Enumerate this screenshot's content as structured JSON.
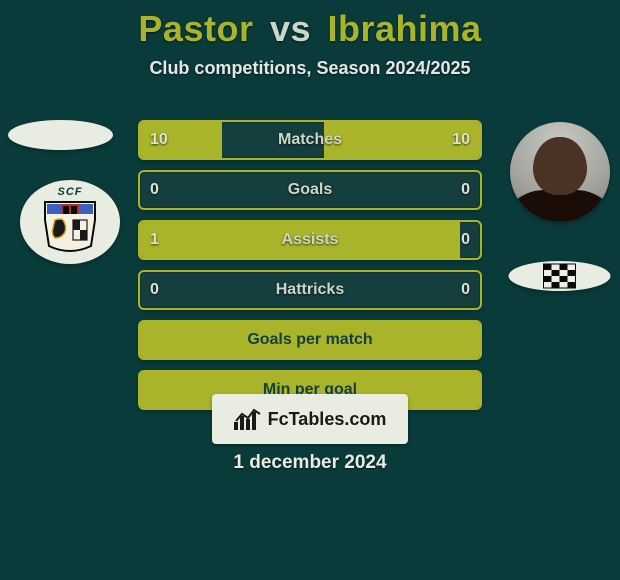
{
  "title": {
    "left": "Pastor",
    "vs": "vs",
    "right": "Ibrahima"
  },
  "subtitle": "Club competitions, Season 2024/2025",
  "players": {
    "left_badge_acronym": "SCF"
  },
  "bars": [
    {
      "label": "Matches",
      "left": "10",
      "right": "10",
      "left_fill_pct": 24,
      "right_fill_pct": 46
    },
    {
      "label": "Goals",
      "left": "0",
      "right": "0",
      "left_fill_pct": 0,
      "right_fill_pct": 0
    },
    {
      "label": "Assists",
      "left": "1",
      "right": "0",
      "left_fill_pct": 94,
      "right_fill_pct": 0
    },
    {
      "label": "Hattricks",
      "left": "0",
      "right": "0",
      "left_fill_pct": 0,
      "right_fill_pct": 0
    },
    {
      "label": "Goals per match",
      "left": "",
      "right": "",
      "full": true
    },
    {
      "label": "Min per goal",
      "left": "",
      "right": "",
      "full": true
    }
  ],
  "footer": {
    "brand": "FcTables.com",
    "date": "1 december 2024"
  },
  "colors": {
    "accent": "#a9b42a",
    "bg": "#0a3b3b",
    "panel": "#153f3f",
    "light": "#e8ece1"
  }
}
